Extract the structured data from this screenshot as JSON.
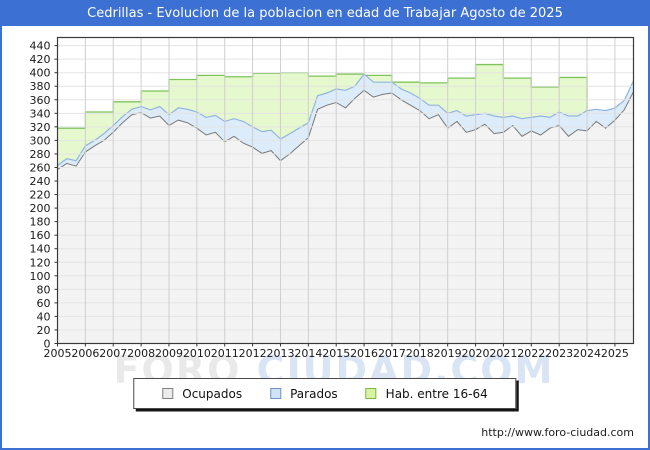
{
  "header": {
    "title": "Cedrillas - Evolucion de la poblacion en edad de Trabajar Agosto de 2025",
    "bg_color": "#3c70d2",
    "text_color": "#ffffff"
  },
  "footer": {
    "url": "http://www.foro-ciudad.com"
  },
  "watermark": {
    "part1": "FORO",
    "part2": "CIUDAD.COM",
    "color1": "#e9e9e9",
    "color2": "#d9e4f5"
  },
  "legend": {
    "items": [
      {
        "label": "Ocupados",
        "fill": "#ececec",
        "border": "#808080"
      },
      {
        "label": "Parados",
        "fill": "#cfe2f7",
        "border": "#6f96c8"
      },
      {
        "label": "Hab. entre 16-64",
        "fill": "#d5f3a2",
        "border": "#7fb84e"
      }
    ]
  },
  "chart_data": {
    "type": "area",
    "title": "Cedrillas - Evolucion de la poblacion en edad de Trabajar Agosto de 2025",
    "xlabel": "",
    "ylabel": "",
    "x_range": [
      2005.0,
      2025.667
    ],
    "ylim": [
      0,
      452
    ],
    "y_ticks": [
      0,
      20,
      40,
      60,
      80,
      100,
      120,
      140,
      160,
      180,
      200,
      220,
      240,
      260,
      280,
      300,
      320,
      340,
      360,
      380,
      400,
      420,
      440
    ],
    "x_ticks": [
      2005,
      2006,
      2007,
      2008,
      2009,
      2010,
      2011,
      2012,
      2013,
      2014,
      2015,
      2016,
      2017,
      2018,
      2019,
      2020,
      2021,
      2022,
      2023,
      2024,
      2025
    ],
    "grid": true,
    "legend_position": "bottom",
    "colors": {
      "plot_border": "#3a3a3a",
      "grid_vertical": "#cfcfcf",
      "grid_horizontal": "#e4e4e4",
      "axis_text": "#1a1a1a"
    },
    "sampling_note": "series values sampled every 1/3 year from 2005.0 to 2025.667 (Agosto 2025)",
    "x_first": 2005.0,
    "x_step_years": 0.33333,
    "series": [
      {
        "name": "Hab. entre 16-64",
        "render": "annual-step-area",
        "fill": "#e6f8cd",
        "line": "#7fc35c",
        "years": [
          2005,
          2006,
          2007,
          2008,
          2009,
          2010,
          2011,
          2012,
          2013,
          2014,
          2015,
          2016,
          2017,
          2018,
          2019,
          2020,
          2021,
          2022,
          2023,
          2024,
          2025
        ],
        "values": [
          318,
          342,
          357,
          373,
          390,
          396,
          394,
          399,
          400,
          395,
          398,
          396,
          386,
          385,
          392,
          412,
          392,
          379,
          393,
          338,
          340
        ]
      },
      {
        "name": "Parados",
        "render": "band-stacked-on-ocupados",
        "fill": "#ddecfa",
        "line": "#90b4e0",
        "values": [
          6,
          7,
          8,
          9,
          8,
          10,
          10,
          9,
          8,
          9,
          12,
          14,
          16,
          18,
          20,
          24,
          26,
          25,
          30,
          26,
          32,
          30,
          32,
          30,
          32,
          30,
          26,
          22,
          20,
          18,
          20,
          26,
          18,
          24,
          22,
          18,
          16,
          16,
          18,
          18,
          20,
          14,
          22,
          16,
          24,
          22,
          16,
          26,
          22,
          14,
          26,
          20,
          28,
          16,
          20,
          30,
          20,
          30,
          18,
          26,
          18,
          14,
          16
        ]
      },
      {
        "name": "Ocupados",
        "render": "base-area",
        "fill": "#f3f3f3",
        "line": "#787878",
        "values": [
          257,
          266,
          262,
          283,
          292,
          300,
          312,
          326,
          338,
          341,
          333,
          336,
          322,
          330,
          326,
          318,
          308,
          312,
          298,
          306,
          296,
          290,
          281,
          285,
          270,
          280,
          292,
          304,
          346,
          352,
          356,
          348,
          362,
          374,
          364,
          368,
          370,
          360,
          352,
          344,
          332,
          338,
          318,
          328,
          312,
          316,
          324,
          310,
          312,
          322,
          306,
          314,
          308,
          318,
          322,
          306,
          316,
          314,
          328,
          318,
          330,
          345,
          372
        ]
      }
    ]
  }
}
